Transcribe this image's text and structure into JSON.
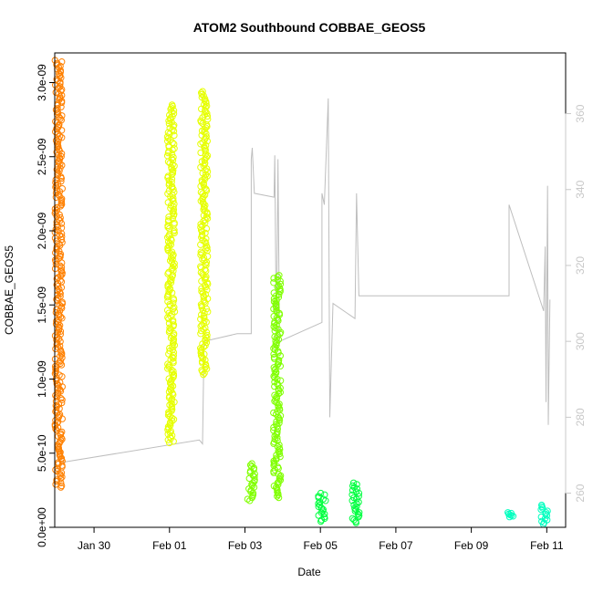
{
  "chart_data": {
    "type": "scatter",
    "title": "ATOM2 Southbound COBBAE_GEOS5",
    "xlabel": "Date",
    "ylabel": "COBBAE_GEOS5",
    "x_axis": {
      "type": "date",
      "ticks": [
        "Jan 30",
        "Feb 01",
        "Feb 03",
        "Feb 05",
        "Feb 07",
        "Feb 09",
        "Feb 11"
      ],
      "range": [
        "2016-01-28T23:00",
        "2016-02-11T12:00"
      ]
    },
    "y_axis_left": {
      "range": [
        0,
        3.2e-09
      ],
      "ticks": [
        0,
        5e-10,
        1e-09,
        1.5e-09,
        2e-09,
        2.5e-09,
        3e-09
      ],
      "tick_labels": [
        "0.0e+00",
        "5.0e-10",
        "1.0e-09",
        "1.5e-09",
        "2.0e-09",
        "2.5e-09",
        "3.0e-09"
      ]
    },
    "y_axis_right": {
      "range": [
        251,
        376
      ],
      "ticks": [
        260,
        280,
        300,
        320,
        340,
        360
      ],
      "tick_labels": [
        "260",
        "280",
        "300",
        "320",
        "340",
        "360"
      ],
      "color": "#c8c8c8"
    },
    "grid": false,
    "legend": "none",
    "series": [
      {
        "color": "#ff8000",
        "marker": "open-circle",
        "clusters": [
          {
            "x": "2016-01-29T01:30",
            "y_min": 2.7e-10,
            "y_max": 3.15e-09
          }
        ]
      },
      {
        "color": "#e6ff00",
        "marker": "open-circle",
        "clusters": [
          {
            "x": "2016-02-01T01:00",
            "y_min": 5.7e-10,
            "y_max": 2.85e-09
          },
          {
            "x": "2016-02-01T22:00",
            "y_min": 1.03e-09,
            "y_max": 2.94e-09
          }
        ]
      },
      {
        "color": "#80ff00",
        "marker": "open-circle",
        "clusters": [
          {
            "x": "2016-02-03T04:00",
            "y_min": 1.8e-10,
            "y_max": 4.3e-10
          },
          {
            "x": "2016-02-03T20:30",
            "y_min": 2e-10,
            "y_max": 1.7e-09
          }
        ]
      },
      {
        "color": "#00ff40",
        "marker": "open-circle",
        "clusters": [
          {
            "x": "2016-02-05T01:00",
            "y_min": 4e-11,
            "y_max": 2.3e-10
          },
          {
            "x": "2016-02-05T22:30",
            "y_min": 3e-11,
            "y_max": 3e-10
          }
        ]
      },
      {
        "color": "#00ffbf",
        "marker": "open-circle",
        "clusters": [
          {
            "x": "2016-02-10T01:00",
            "y_min": 7e-11,
            "y_max": 1e-10
          },
          {
            "x": "2016-02-10T22:30",
            "y_min": 2e-11,
            "y_max": 1.5e-10
          }
        ]
      }
    ],
    "overlay_line": {
      "color": "#bebebe",
      "axis": "right",
      "points": [
        [
          "2016-01-29T02:00",
          268
        ],
        [
          "2016-02-01T19:00",
          274
        ],
        [
          "2016-02-01T21:00",
          273
        ],
        [
          "2016-02-01T22:00",
          300
        ],
        [
          "2016-02-02T19:00",
          302
        ],
        [
          "2016-02-03T04:00",
          302
        ],
        [
          "2016-02-03T04:00",
          348
        ],
        [
          "2016-02-03T04:40",
          351
        ],
        [
          "2016-02-03T06:00",
          339
        ],
        [
          "2016-02-03T18:30",
          338
        ],
        [
          "2016-02-03T19:00",
          349
        ],
        [
          "2016-02-03T20:00",
          298
        ],
        [
          "2016-02-03T21:00",
          348
        ],
        [
          "2016-02-03T22:00",
          300
        ],
        [
          "2016-02-05T01:00",
          305
        ],
        [
          "2016-02-05T01:00",
          339
        ],
        [
          "2016-02-05T02:30",
          336
        ],
        [
          "2016-02-05T05:00",
          364
        ],
        [
          "2016-02-05T06:00",
          280
        ],
        [
          "2016-02-05T08:00",
          310
        ],
        [
          "2016-02-05T22:00",
          306
        ],
        [
          "2016-02-05T23:00",
          339
        ],
        [
          "2016-02-06T00:30",
          312
        ],
        [
          "2016-02-10T00:00",
          312
        ],
        [
          "2016-02-10T00:00",
          336
        ],
        [
          "2016-02-10T22:00",
          308
        ],
        [
          "2016-02-10T23:00",
          325
        ],
        [
          "2016-02-10T23:30",
          284
        ],
        [
          "2016-02-11T00:30",
          341
        ],
        [
          "2016-02-11T01:00",
          278
        ],
        [
          "2016-02-11T02:00",
          311
        ]
      ]
    }
  }
}
